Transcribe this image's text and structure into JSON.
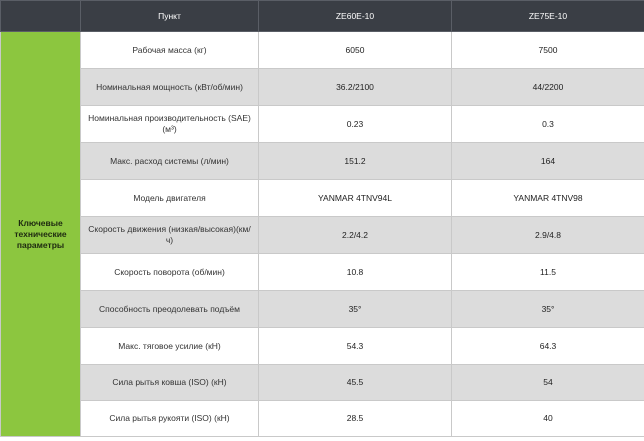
{
  "header": {
    "item": "Пункт",
    "model_a": "ZE60E-10",
    "model_b": "ZE75E-10"
  },
  "group_label": "Ключевые технические параметры",
  "rows": [
    {
      "label": "Рабочая масса (кг)",
      "a": "6050",
      "b": "7500"
    },
    {
      "label": "Номинальная мощность (кВт/об/мин)",
      "a": "36.2/2100",
      "b": "44/2200"
    },
    {
      "label": "Номинальная производительность (SAE) (м³)",
      "a": "0.23",
      "b": "0.3"
    },
    {
      "label": "Макс. расход системы (л/мин)",
      "a": "151.2",
      "b": "164"
    },
    {
      "label": "Модель двигателя",
      "a": "YANMAR 4TNV94L",
      "b": "YANMAR 4TNV98"
    },
    {
      "label": "Скорость движения (низкая/высокая)(км/ч)",
      "a": "2.2/4.2",
      "b": "2.9/4.8"
    },
    {
      "label": "Скорость поворота (об/мин)",
      "a": "10.8",
      "b": "11.5"
    },
    {
      "label": "Способность преодолевать подъём",
      "a": "35°",
      "b": "35°"
    },
    {
      "label": "Макс. тяговое усилие (кН)",
      "a": "54.3",
      "b": "64.3"
    },
    {
      "label": "Сила рытья ковша (ISO) (кН)",
      "a": "45.5",
      "b": "54"
    },
    {
      "label": "Сила рытья рукояти (ISO) (кН)",
      "a": "28.5",
      "b": "40"
    }
  ],
  "colors": {
    "header_bg": "#3a3e45",
    "group_bg": "#8cc63f",
    "row_alt_bg": "#dcdcdc",
    "row_bg": "#ffffff"
  }
}
